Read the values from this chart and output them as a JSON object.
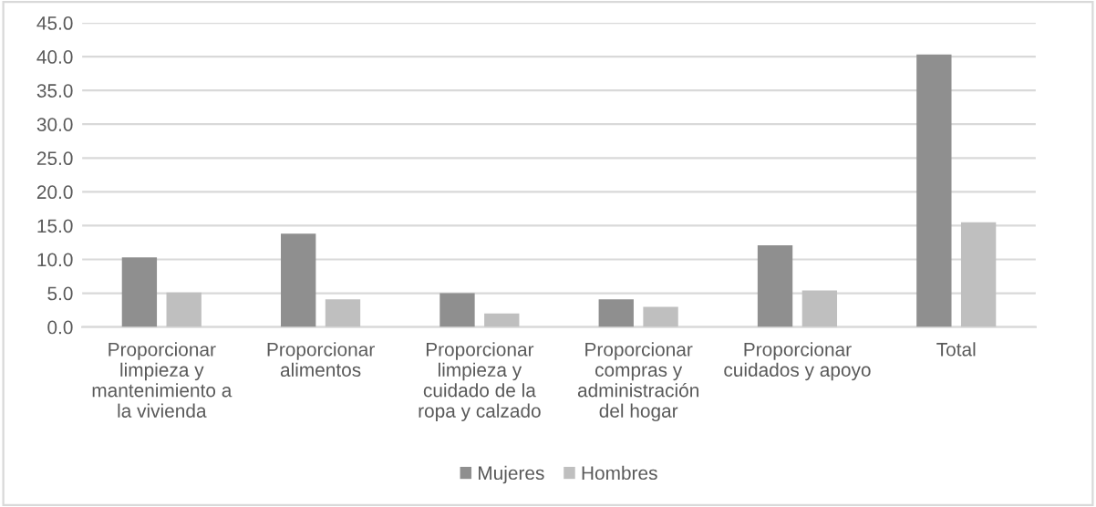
{
  "chart_data": {
    "type": "bar",
    "categories": [
      "Proporcionar\nlimpieza y\nmantenimiento a\nla vivienda",
      "Proporcionar\nalimentos",
      "Proporcionar\nlimpieza y\ncuidado de la\nropa y calzado",
      "Proporcionar\ncompras y\nadministración\ndel hogar",
      "Proporcionar\ncuidados y apoyo",
      "Total"
    ],
    "series": [
      {
        "name": "Mujeres",
        "color": "#8f8f8f",
        "values": [
          10.3,
          13.8,
          5.0,
          4.1,
          12.1,
          40.3
        ]
      },
      {
        "name": "Hombres",
        "color": "#bfbfbf",
        "values": [
          5.1,
          4.1,
          2.0,
          3.0,
          5.4,
          15.5
        ]
      }
    ],
    "ylim": [
      0,
      45
    ],
    "yticks": [
      {
        "value": 0,
        "label": "0.0"
      },
      {
        "value": 5,
        "label": "5.0"
      },
      {
        "value": 10,
        "label": "10.0"
      },
      {
        "value": 15,
        "label": "15.0"
      },
      {
        "value": 20,
        "label": "20.0"
      },
      {
        "value": 25,
        "label": "25.0"
      },
      {
        "value": 30,
        "label": "30.0"
      },
      {
        "value": 35,
        "label": "35.0"
      },
      {
        "value": 40,
        "label": "40.0"
      },
      {
        "value": 45,
        "label": "45.0"
      }
    ],
    "grid": "y",
    "legend": "bottom"
  }
}
